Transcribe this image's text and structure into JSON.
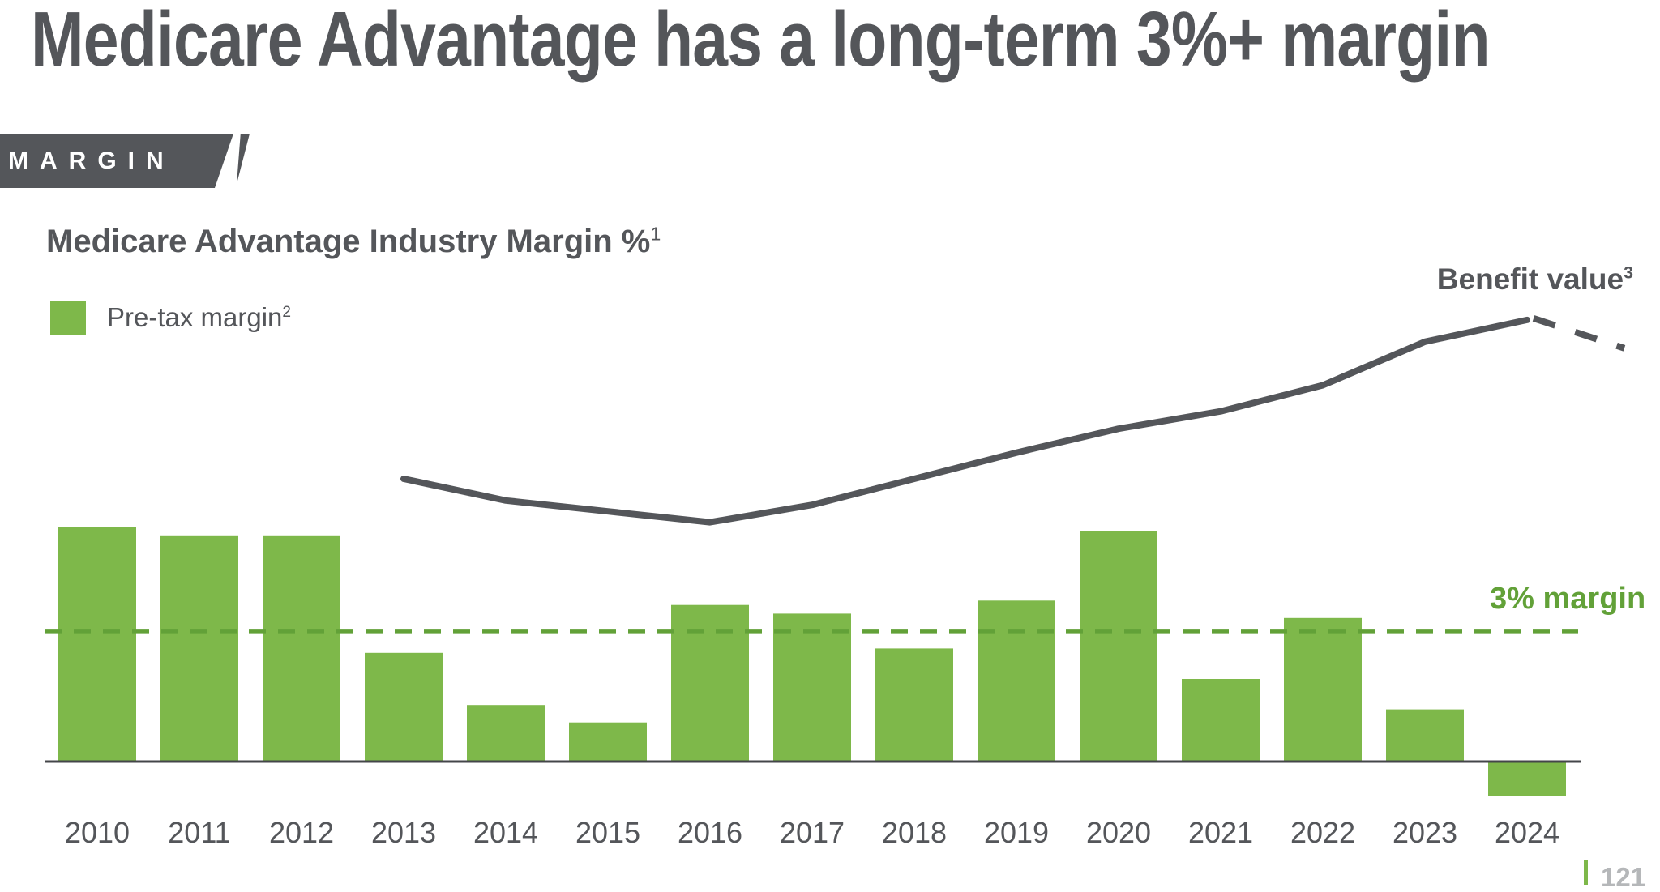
{
  "header": {
    "title": "Medicare Advantage has a long-term 3%+ margin",
    "tag": "MARGIN"
  },
  "chart": {
    "title": "Medicare Advantage Industry Margin %",
    "footnotes": {
      "title": "1",
      "legend": "2",
      "line": "3"
    },
    "legend_label": "Pre-tax margin",
    "line_label": "Benefit value",
    "threshold_label": "3% margin"
  },
  "footer": {
    "page_number": "121"
  },
  "colors": {
    "dark_gray": "#54565a",
    "bar_green": "#7eb84a",
    "threshold_green": "#62a138",
    "axis_gray": "#44464a",
    "page_number_gray": "#b5b7b9"
  },
  "chart_data": {
    "type": "bar",
    "title": "Medicare Advantage Industry Margin %",
    "xlabel": "",
    "ylabel": "",
    "value_axis": "hidden",
    "grid": false,
    "legend_position": "top-left",
    "ylim": [
      -1.5,
      11
    ],
    "categories": [
      "2010",
      "2011",
      "2012",
      "2013",
      "2014",
      "2015",
      "2016",
      "2017",
      "2018",
      "2019",
      "2020",
      "2021",
      "2022",
      "2023",
      "2024"
    ],
    "series": [
      {
        "name": "Pre-tax margin",
        "kind": "bar",
        "unit": "%",
        "values": [
          5.4,
          5.2,
          5.2,
          2.5,
          1.3,
          0.9,
          3.6,
          3.4,
          2.6,
          3.7,
          5.3,
          1.9,
          3.3,
          1.2,
          -0.8
        ]
      },
      {
        "name": "Benefit value",
        "kind": "line",
        "start_category": "2013",
        "note": "no numeric axis shown; relative values estimated on same scale as bars",
        "values": [
          6.5,
          6.0,
          5.75,
          5.5,
          5.9,
          6.5,
          7.1,
          7.65,
          8.05,
          8.65,
          9.65,
          10.15
        ],
        "projection_dashed": {
          "beyond_last_category": true,
          "end_value": 9.5
        }
      }
    ],
    "threshold": {
      "value": 3,
      "label": "3% margin",
      "style": "dashed-green"
    }
  }
}
